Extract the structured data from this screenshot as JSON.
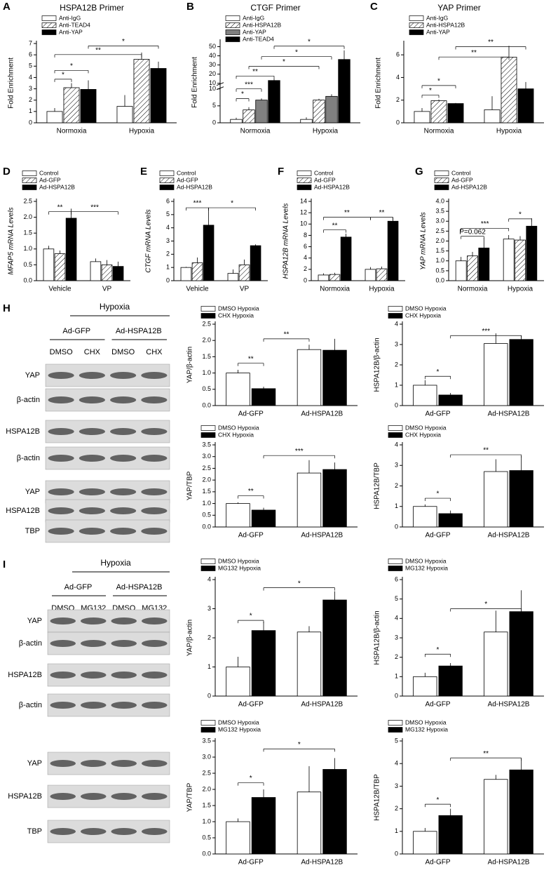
{
  "chart_data": [
    {
      "type": "bar",
      "label": "A",
      "title": "HSPA12B Primer",
      "ylabel": "Fold Enrichment",
      "categories": [
        "Normoxia",
        "Hypoxia"
      ],
      "series": [
        {
          "name": "Anti-IgG",
          "color": "#ffffff",
          "values": [
            1.0,
            1.45
          ],
          "errors": [
            0.3,
            1.0
          ]
        },
        {
          "name": "Anti-TEAD4",
          "color": "#ffffff",
          "hatch": true,
          "values": [
            3.1,
            5.6
          ],
          "errors": [
            0.4,
            0.6
          ]
        },
        {
          "name": "Anti-YAP",
          "color": "#000000",
          "values": [
            2.95,
            4.8
          ],
          "errors": [
            0.8,
            0.6
          ]
        }
      ],
      "ylim": [
        0,
        7
      ],
      "yticks": [
        0,
        1,
        2,
        3,
        4,
        5,
        6,
        7
      ],
      "annotations": [
        "*",
        "*",
        "**",
        "*"
      ]
    },
    {
      "type": "bar",
      "label": "B",
      "title": "CTGF Primer",
      "ylabel": "Fold Enrichment",
      "categories": [
        "Normoxia",
        "Hypoxia"
      ],
      "series": [
        {
          "name": "Anti-IgG",
          "color": "#ffffff",
          "values": [
            1.0,
            1.0
          ],
          "errors": [
            0.5,
            0.6
          ]
        },
        {
          "name": "Anti-HSPA12B",
          "color": "#ffffff",
          "hatch": true,
          "values": [
            3.8,
            6.7
          ],
          "errors": [
            0.8,
            0.4
          ]
        },
        {
          "name": "Anti-YAP",
          "color": "#808080",
          "values": [
            6.7,
            7.8
          ],
          "errors": [
            0.5,
            0.6
          ]
        },
        {
          "name": "Anti-TEAD4",
          "color": "#000000",
          "values": [
            13,
            36
          ],
          "errors": [
            2,
            10
          ]
        }
      ],
      "ylim": [
        0,
        55
      ],
      "axis_break": 10,
      "yticks": [
        0,
        5,
        10
      ],
      "y_upper_ticks": [
        10,
        20,
        30,
        40,
        50
      ],
      "annotations": [
        "*",
        "***",
        "**",
        "*",
        "*",
        "*"
      ]
    },
    {
      "type": "bar",
      "label": "C",
      "title": "YAP Primer",
      "ylabel": "Fold Enrichment",
      "categories": [
        "Normoxia",
        "Hypoxia"
      ],
      "series": [
        {
          "name": "Anti-IgG",
          "color": "#ffffff",
          "values": [
            1.0,
            1.15
          ],
          "errors": [
            0.3,
            1.2
          ]
        },
        {
          "name": "Anti-HSPA12B",
          "color": "#ffffff",
          "hatch": true,
          "values": [
            1.95,
            5.8
          ],
          "errors": [
            0.1,
            1.0
          ]
        },
        {
          "name": "Anti-YAP",
          "color": "#000000",
          "values": [
            1.7,
            3.0
          ],
          "errors": [
            0.05,
            0.6
          ]
        }
      ],
      "ylim": [
        0,
        7
      ],
      "yticks": [
        0,
        2,
        4,
        6
      ],
      "annotations": [
        "*",
        "*",
        "**",
        "**"
      ]
    },
    {
      "type": "bar",
      "label": "D",
      "ylabel": "MFAP5 mRNA Levels",
      "categories": [
        "Vehicle",
        "VP"
      ],
      "series": [
        {
          "name": "Control",
          "color": "#ffffff",
          "values": [
            1.0,
            0.6
          ],
          "errors": [
            0.1,
            0.1
          ]
        },
        {
          "name": "Ad-GFP",
          "color": "#ffffff",
          "hatch": true,
          "values": [
            0.85,
            0.5
          ],
          "errors": [
            0.1,
            0.15
          ]
        },
        {
          "name": "Ad-HSPA12B",
          "color": "#000000",
          "values": [
            1.97,
            0.45
          ],
          "errors": [
            0.3,
            0.15
          ]
        }
      ],
      "ylim": [
        0,
        2.5
      ],
      "yticks": [
        {
          "value": 0,
          "label": "0.0"
        },
        0.5,
        {
          "value": 1,
          "label": "1.0"
        },
        1.5,
        {
          "value": 2,
          "label": "2.0"
        },
        2.5
      ],
      "annotations": [
        "**",
        "***"
      ]
    },
    {
      "type": "bar",
      "label": "E",
      "ylabel": "CTGF mRNA Levels",
      "categories": [
        "Vehicle",
        "VP"
      ],
      "series": [
        {
          "name": "Control",
          "color": "#ffffff",
          "values": [
            1.0,
            0.55
          ],
          "errors": [
            0.05,
            0.3
          ]
        },
        {
          "name": "Ad-GFP",
          "color": "#ffffff",
          "hatch": true,
          "values": [
            1.35,
            1.2
          ],
          "errors": [
            0.4,
            0.4
          ]
        },
        {
          "name": "Ad-HSPA12B",
          "color": "#000000",
          "values": [
            4.2,
            2.65
          ],
          "errors": [
            1.3,
            0.1
          ]
        }
      ],
      "ylim": [
        0,
        6
      ],
      "yticks": [
        0,
        1,
        2,
        3,
        4,
        5,
        6
      ],
      "annotations": [
        "***",
        "*"
      ]
    },
    {
      "type": "bar",
      "label": "F",
      "ylabel": "HSPA12B mRNA Levels",
      "categories": [
        "Normoxia",
        "Hypoxia"
      ],
      "series": [
        {
          "name": "Control",
          "color": "#ffffff",
          "values": [
            1.0,
            2.0
          ],
          "errors": [
            0.3,
            0.4
          ]
        },
        {
          "name": "Ad-GFP",
          "color": "#ffffff",
          "hatch": true,
          "values": [
            1.1,
            2.1
          ],
          "errors": [
            0.3,
            0.4
          ]
        },
        {
          "name": "Ad-HSPA12B",
          "color": "#000000",
          "values": [
            7.7,
            10.5
          ],
          "errors": [
            0.6,
            0.7
          ]
        }
      ],
      "ylim": [
        0,
        14
      ],
      "yticks": [
        0,
        2,
        4,
        6,
        8,
        10,
        12,
        14
      ],
      "annotations": [
        "**",
        "**",
        "**"
      ]
    },
    {
      "type": "bar",
      "label": "G",
      "ylabel": "YAP mRNA Levels",
      "categories": [
        "Normoxia",
        "Hypoxia"
      ],
      "series": [
        {
          "name": "Control",
          "color": "#ffffff",
          "values": [
            1.0,
            2.1
          ],
          "errors": [
            0.2,
            0.2
          ]
        },
        {
          "name": "Ad-GFP",
          "color": "#ffffff",
          "hatch": true,
          "values": [
            1.25,
            2.05
          ],
          "errors": [
            0.2,
            0.2
          ]
        },
        {
          "name": "Ad-HSPA12B",
          "color": "#000000",
          "values": [
            1.65,
            2.75
          ],
          "errors": [
            0.5,
            0.4
          ]
        }
      ],
      "ylim": [
        0,
        4
      ],
      "yticks": [
        {
          "value": 0,
          "label": "0.0"
        },
        0.5,
        {
          "value": 1,
          "label": "1.0"
        },
        1.5,
        {
          "value": 2,
          "label": "2.0"
        },
        2.5,
        {
          "value": 3,
          "label": "3.0"
        },
        3.5,
        {
          "value": 4,
          "label": "4.0"
        }
      ],
      "annotations": [
        "P=0.062",
        "***",
        "*"
      ]
    },
    {
      "type": "bar",
      "ylabel": "YAP/β-actin",
      "categories": [
        "Ad-GFP",
        "Ad-HSPA12B"
      ],
      "series": [
        {
          "name": "DMSO Hypoxia",
          "color": "#ffffff",
          "values": [
            1.0,
            1.72
          ],
          "errors": [
            0.1,
            0.15
          ]
        },
        {
          "name": "CHX Hypoxia",
          "color": "#000000",
          "values": [
            0.52,
            1.7
          ],
          "errors": [
            0.06,
            0.35
          ]
        }
      ],
      "ylim": [
        0,
        2.5
      ],
      "yticks": [
        {
          "value": 0,
          "label": "0.0"
        },
        0.5,
        {
          "value": 1,
          "label": "1.0"
        },
        1.5,
        {
          "value": 2,
          "label": "2.0"
        },
        2.5
      ],
      "annotations": [
        "**",
        "**"
      ]
    },
    {
      "type": "bar",
      "ylabel": "HSPA12B/β-actin",
      "categories": [
        "Ad-GFP",
        "Ad-HSPA12B"
      ],
      "series": [
        {
          "name": "DMSO Hypoxia",
          "color": "#ffffff",
          "values": [
            1.0,
            3.05
          ],
          "errors": [
            0.25,
            0.5
          ]
        },
        {
          "name": "CHX Hypoxia",
          "color": "#000000",
          "values": [
            0.52,
            3.25
          ],
          "errors": [
            0.1,
            0.2
          ]
        }
      ],
      "ylim": [
        0,
        4
      ],
      "yticks": [
        0,
        1,
        2,
        3,
        4
      ],
      "annotations": [
        "*",
        "***"
      ]
    },
    {
      "type": "bar",
      "ylabel": "YAP/TBP",
      "categories": [
        "Ad-GFP",
        "Ad-HSPA12B"
      ],
      "series": [
        {
          "name": "DMSO Hypoxia",
          "color": "#ffffff",
          "values": [
            1.0,
            2.3
          ],
          "errors": [
            0.05,
            0.55
          ]
        },
        {
          "name": "CHX Hypoxia",
          "color": "#000000",
          "values": [
            0.72,
            2.45
          ],
          "errors": [
            0.1,
            0.3
          ]
        }
      ],
      "ylim": [
        0,
        3.5
      ],
      "yticks": [
        {
          "value": 0,
          "label": "0.0"
        },
        0.5,
        {
          "value": 1,
          "label": "1.0"
        },
        1.5,
        {
          "value": 2,
          "label": "2.0"
        },
        2.5,
        {
          "value": 3,
          "label": "3.0"
        },
        3.5
      ],
      "annotations": [
        "**",
        "***"
      ]
    },
    {
      "type": "bar",
      "ylabel": "HSPA12B/TBP",
      "categories": [
        "Ad-GFP",
        "Ad-HSPA12B"
      ],
      "series": [
        {
          "name": "DMSO Hypoxia",
          "color": "#ffffff",
          "values": [
            1.0,
            2.7
          ],
          "errors": [
            0.1,
            0.6
          ]
        },
        {
          "name": "CHX Hypoxia",
          "color": "#000000",
          "values": [
            0.65,
            2.75
          ],
          "errors": [
            0.15,
            0.7
          ]
        }
      ],
      "ylim": [
        0,
        4
      ],
      "yticks": [
        0,
        1,
        2,
        3,
        4
      ],
      "annotations": [
        "*",
        "**"
      ]
    },
    {
      "type": "bar",
      "ylabel": "YAP/β-actin",
      "categories": [
        "Ad-GFP",
        "Ad-HSPA12B"
      ],
      "series": [
        {
          "name": "DMSO Hypoxia",
          "color": "#ffffff",
          "values": [
            1.0,
            2.2
          ],
          "errors": [
            0.35,
            0.2
          ]
        },
        {
          "name": "MG132 Hypoxia",
          "color": "#000000",
          "values": [
            2.25,
            3.3
          ],
          "errors": [
            0.3,
            0.3
          ]
        }
      ],
      "ylim": [
        0,
        4
      ],
      "yticks": [
        0,
        1,
        2,
        3,
        4
      ],
      "annotations": [
        "*",
        "*"
      ]
    },
    {
      "type": "bar",
      "ylabel": "HSPA12B/β-actin",
      "categories": [
        "Ad-GFP",
        "Ad-HSPA12B"
      ],
      "series": [
        {
          "name": "DMSO Hypoxia",
          "color": "#ffffff",
          "values": [
            1.0,
            3.3
          ],
          "errors": [
            0.2,
            1.1
          ]
        },
        {
          "name": "MG132 Hypoxia",
          "color": "#000000",
          "values": [
            1.55,
            4.35
          ],
          "errors": [
            0.15,
            1.1
          ]
        }
      ],
      "ylim": [
        0,
        6
      ],
      "yticks": [
        0,
        1,
        2,
        3,
        4,
        5,
        6
      ],
      "annotations": [
        "*",
        "*"
      ]
    },
    {
      "type": "bar",
      "ylabel": "YAP/TBP",
      "categories": [
        "Ad-GFP",
        "Ad-HSPA12B"
      ],
      "series": [
        {
          "name": "DMSO Hypoxia",
          "color": "#ffffff",
          "values": [
            1.0,
            1.92
          ],
          "errors": [
            0.1,
            0.8
          ]
        },
        {
          "name": "MG132 Hypoxia",
          "color": "#000000",
          "values": [
            1.75,
            2.62
          ],
          "errors": [
            0.25,
            0.35
          ]
        }
      ],
      "ylim": [
        0,
        3.5
      ],
      "yticks": [
        {
          "value": 0,
          "label": "0.0"
        },
        0.5,
        {
          "value": 1,
          "label": "1.0"
        },
        1.5,
        {
          "value": 2,
          "label": "2.0"
        },
        2.5,
        {
          "value": 3,
          "label": "3.0"
        },
        3.5
      ],
      "annotations": [
        "*",
        "*"
      ]
    },
    {
      "type": "bar",
      "ylabel": "HSPA12B/TBP",
      "categories": [
        "Ad-GFP",
        "Ad-HSPA12B"
      ],
      "series": [
        {
          "name": "DMSO Hypoxia",
          "color": "#ffffff",
          "values": [
            1.0,
            3.3
          ],
          "errors": [
            0.15,
            0.2
          ]
        },
        {
          "name": "MG132 Hypoxia",
          "color": "#000000",
          "values": [
            1.7,
            3.72
          ],
          "errors": [
            0.3,
            0.5
          ]
        }
      ],
      "ylim": [
        0,
        5
      ],
      "yticks": [
        0,
        1,
        2,
        3,
        4,
        5
      ],
      "annotations": [
        "*",
        "**"
      ]
    }
  ],
  "blots": [
    {
      "label": "H",
      "title": "Hypoxia",
      "groups": [
        "Ad-GFP",
        "Ad-HSPA12B"
      ],
      "lanes": [
        "DMSO",
        "CHX",
        "DMSO",
        "CHX"
      ],
      "rows": [
        "YAP",
        "β-actin",
        "HSPA12B",
        "β-actin",
        "YAP",
        "HSPA12B",
        "TBP"
      ]
    },
    {
      "label": "I",
      "title": "Hypoxia",
      "groups": [
        "Ad-GFP",
        "Ad-HSPA12B"
      ],
      "lanes": [
        "DMSO",
        "MG132",
        "DMSO",
        "MG132"
      ],
      "rows": [
        "YAP",
        "β-actin",
        "HSPA12B",
        "β-actin",
        "YAP",
        "HSPA12B",
        "TBP"
      ]
    }
  ]
}
